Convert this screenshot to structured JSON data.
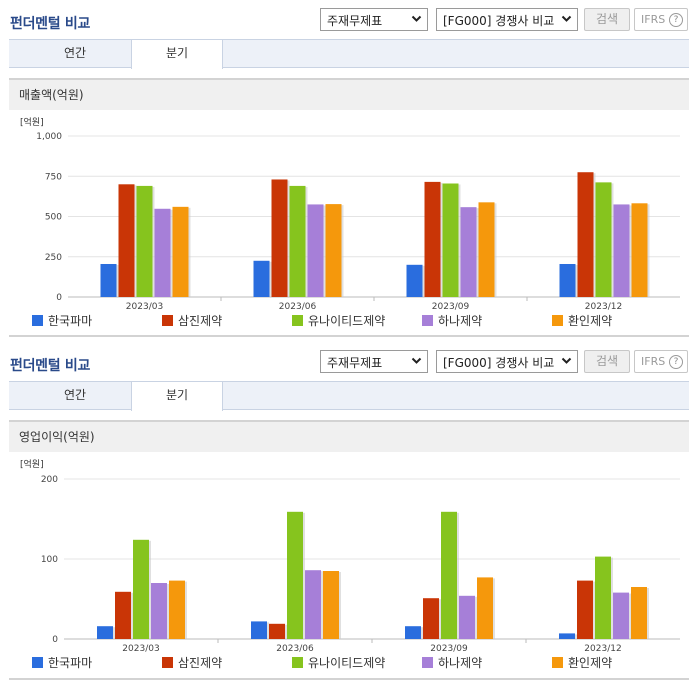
{
  "panels": [
    {
      "title": "펀더멘털 비교",
      "select_statement": "주재무제표",
      "select_compare": "[FG000] 경쟁사 비교",
      "search_label": "검색",
      "ifrs_label": "IFRS",
      "ifrs_help": "?",
      "tabs": [
        "연간",
        "분기"
      ],
      "chart_header": "매출액(억원)"
    },
    {
      "title": "펀더멘털 비교",
      "select_statement": "주재무제표",
      "select_compare": "[FG000] 경쟁사 비교",
      "search_label": "검색",
      "ifrs_label": "IFRS",
      "ifrs_help": "?",
      "tabs": [
        "연간",
        "분기"
      ],
      "chart_header": "영업이익(억원)"
    }
  ],
  "colors": {
    "한국파마": "#2a6dde",
    "삼진제약": "#c93506",
    "유나이티드제약": "#86c41e",
    "하나제약": "#a67fd8",
    "환인제약": "#f5980c"
  },
  "chart_data": [
    {
      "type": "bar",
      "unit": "[억원]",
      "categories": [
        "2023/03",
        "2023/06",
        "2023/09",
        "2023/12"
      ],
      "ylim": [
        0,
        1000
      ],
      "yticks": [
        "0",
        "250",
        "500",
        "750",
        "1,000"
      ],
      "ytick_values": [
        0,
        250,
        500,
        750,
        1000
      ],
      "grid": true,
      "legend_position": "bottom",
      "series": [
        {
          "name": "한국파마",
          "values": [
            205,
            225,
            200,
            205
          ]
        },
        {
          "name": "삼진제약",
          "values": [
            700,
            730,
            715,
            775
          ]
        },
        {
          "name": "유나이티드제약",
          "values": [
            690,
            690,
            705,
            712
          ]
        },
        {
          "name": "하나제약",
          "values": [
            548,
            575,
            558,
            575
          ]
        },
        {
          "name": "환인제약",
          "values": [
            560,
            577,
            588,
            582
          ]
        }
      ]
    },
    {
      "type": "bar",
      "unit": "[억원]",
      "categories": [
        "2023/03",
        "2023/06",
        "2023/09",
        "2023/12"
      ],
      "ylim": [
        0,
        200
      ],
      "yticks": [
        "0",
        "100",
        "200"
      ],
      "ytick_values": [
        0,
        100,
        200
      ],
      "grid": true,
      "legend_position": "bottom",
      "series": [
        {
          "name": "한국파마",
          "values": [
            16,
            22,
            16,
            7
          ]
        },
        {
          "name": "삼진제약",
          "values": [
            59,
            19,
            51,
            73
          ]
        },
        {
          "name": "유나이티드제약",
          "values": [
            124,
            159,
            159,
            103
          ]
        },
        {
          "name": "하나제약",
          "values": [
            70,
            86,
            54,
            58
          ]
        },
        {
          "name": "환인제약",
          "values": [
            73,
            85,
            77,
            65
          ]
        }
      ]
    }
  ]
}
